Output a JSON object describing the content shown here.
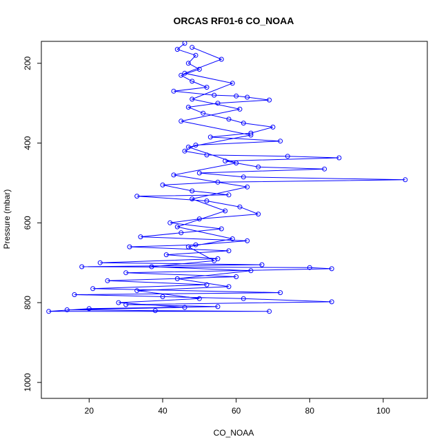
{
  "chart_data": {
    "type": "scatter",
    "title": "ORCAS RF01-6 CO_NOAA",
    "xlabel": "CO_NOAA",
    "ylabel": "Pressure (mbar)",
    "xlim": [
      7,
      112
    ],
    "ylim": [
      1040,
      145
    ],
    "y_inverted": true,
    "x_ticks": [
      20,
      40,
      60,
      80,
      100
    ],
    "y_ticks": [
      200,
      400,
      600,
      800,
      1000
    ],
    "grid": false,
    "legend": "none",
    "series": [
      {
        "marker": "open-circle",
        "connected": true,
        "color": "#0000ff",
        "points": [
          [
            46,
            150
          ],
          [
            44,
            165
          ],
          [
            49,
            180
          ],
          [
            47,
            200
          ],
          [
            50,
            215
          ],
          [
            45,
            230
          ],
          [
            48,
            245
          ],
          [
            52,
            260
          ],
          [
            43,
            270
          ],
          [
            54,
            280
          ],
          [
            60,
            282
          ],
          [
            63,
            285
          ],
          [
            69,
            292
          ],
          [
            55,
            300
          ],
          [
            47,
            310
          ],
          [
            51,
            325
          ],
          [
            58,
            340
          ],
          [
            62,
            350
          ],
          [
            70,
            360
          ],
          [
            64,
            375
          ],
          [
            53,
            385
          ],
          [
            72,
            395
          ],
          [
            49,
            405
          ],
          [
            46,
            420
          ],
          [
            52,
            430
          ],
          [
            74,
            433
          ],
          [
            88,
            437
          ],
          [
            57,
            445
          ],
          [
            66,
            460
          ],
          [
            84,
            465
          ],
          [
            50,
            475
          ],
          [
            62,
            485
          ],
          [
            106,
            492
          ],
          [
            55,
            498
          ],
          [
            40,
            505
          ],
          [
            48,
            520
          ],
          [
            58,
            530
          ],
          [
            33,
            533
          ],
          [
            52,
            545
          ],
          [
            61,
            560
          ],
          [
            66,
            578
          ],
          [
            50,
            590
          ],
          [
            42,
            600
          ],
          [
            56,
            615
          ],
          [
            45,
            625
          ],
          [
            34,
            635
          ],
          [
            63,
            645
          ],
          [
            49,
            655
          ],
          [
            31,
            660
          ],
          [
            58,
            670
          ],
          [
            41,
            680
          ],
          [
            55,
            690
          ],
          [
            23,
            700
          ],
          [
            67,
            705
          ],
          [
            18,
            710
          ],
          [
            80,
            712
          ],
          [
            86,
            715
          ],
          [
            30,
            725
          ],
          [
            60,
            735
          ],
          [
            25,
            745
          ],
          [
            52,
            755
          ],
          [
            21,
            765
          ],
          [
            72,
            775
          ],
          [
            16,
            780
          ],
          [
            40,
            785
          ],
          [
            62,
            790
          ],
          [
            86,
            798
          ],
          [
            30,
            805
          ],
          [
            55,
            810
          ],
          [
            20,
            815
          ],
          [
            9,
            822
          ],
          [
            69,
            822
          ],
          [
            38,
            820
          ],
          [
            14,
            818
          ],
          [
            46,
            812
          ],
          [
            28,
            800
          ],
          [
            50,
            790
          ],
          [
            33,
            770
          ],
          [
            58,
            760
          ],
          [
            44,
            740
          ],
          [
            64,
            720
          ],
          [
            37,
            710
          ],
          [
            54,
            695
          ],
          [
            47,
            660
          ],
          [
            59,
            640
          ],
          [
            44,
            610
          ],
          [
            57,
            570
          ],
          [
            48,
            540
          ],
          [
            63,
            510
          ],
          [
            43,
            480
          ],
          [
            60,
            450
          ],
          [
            47,
            410
          ],
          [
            64,
            380
          ],
          [
            45,
            345
          ],
          [
            61,
            315
          ],
          [
            48,
            290
          ],
          [
            59,
            250
          ],
          [
            46,
            225
          ],
          [
            56,
            190
          ],
          [
            48,
            160
          ]
        ]
      }
    ]
  }
}
